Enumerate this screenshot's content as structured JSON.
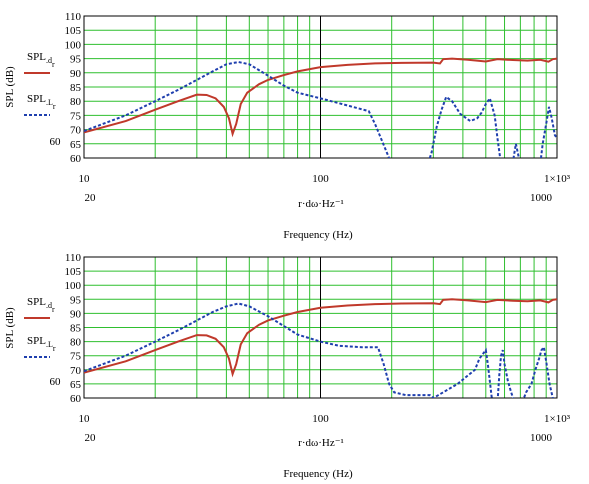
{
  "chart_data": [
    {
      "type": "line",
      "xscale": "log",
      "xlim": [
        10,
        1000
      ],
      "ylim": [
        60,
        110
      ],
      "yticks": [
        "110",
        "105",
        "100",
        "95",
        "90",
        "85",
        "80",
        "75",
        "70",
        "65",
        "60"
      ],
      "ytick_extra": [
        "60"
      ],
      "ylabel": "SPL (dB)",
      "xticks_top": [
        "10",
        "100",
        "1×10³"
      ],
      "xticks_bottom": [
        "20",
        "1000"
      ],
      "xlabel_expr": "r·dω·Hz⁻¹",
      "xlabel": "Frequency (Hz)",
      "series": [
        {
          "name": "SPL_d_r",
          "label_main": "SPL",
          "label_sub": "d",
          "label_subsub": "r",
          "color": "#c0392b",
          "style": "solid",
          "points": [
            [
              10,
              69
            ],
            [
              15,
              73
            ],
            [
              20,
              77
            ],
            [
              25,
              80
            ],
            [
              30,
              82.3
            ],
            [
              33,
              82.2
            ],
            [
              36,
              81
            ],
            [
              39,
              78
            ],
            [
              41,
              74
            ],
            [
              42.5,
              68.5
            ],
            [
              44,
              72
            ],
            [
              46,
              79
            ],
            [
              49,
              83
            ],
            [
              55,
              86
            ],
            [
              60,
              87.5
            ],
            [
              70,
              89.2
            ],
            [
              80,
              90.5
            ],
            [
              100,
              92
            ],
            [
              130,
              92.8
            ],
            [
              170,
              93.3
            ],
            [
              220,
              93.5
            ],
            [
              300,
              93.6
            ],
            [
              320,
              93.3
            ],
            [
              330,
              94.8
            ],
            [
              360,
              95
            ],
            [
              420,
              94.6
            ],
            [
              500,
              94
            ],
            [
              560,
              94.8
            ],
            [
              650,
              94.5
            ],
            [
              750,
              94.3
            ],
            [
              850,
              94.6
            ],
            [
              920,
              93.9
            ],
            [
              960,
              94.8
            ],
            [
              1000,
              95
            ]
          ]
        },
        {
          "name": "SPL_L_r",
          "label_main": "SPL",
          "label_sub": "L",
          "label_subsub": "r",
          "color": "#1f3fae",
          "style": "dotted",
          "points": [
            [
              10,
              69.5
            ],
            [
              15,
              75
            ],
            [
              20,
              80
            ],
            [
              25,
              84
            ],
            [
              30,
              87.5
            ],
            [
              35,
              90.5
            ],
            [
              40,
              93
            ],
            [
              45,
              93.8
            ],
            [
              50,
              93
            ],
            [
              60,
              89
            ],
            [
              70,
              85.5
            ],
            [
              80,
              83
            ],
            [
              100,
              81
            ],
            [
              130,
              78.5
            ],
            [
              160,
              76.5
            ],
            [
              170,
              72
            ],
            [
              180,
              67
            ],
            [
              195,
              60
            ],
            [
              200,
              58
            ],
            [
              285,
              58
            ],
            [
              295,
              62
            ],
            [
              310,
              71
            ],
            [
              325,
              77
            ],
            [
              340,
              81.5
            ],
            [
              360,
              80
            ],
            [
              390,
              75.5
            ],
            [
              430,
              73
            ],
            [
              460,
              74
            ],
            [
              480,
              76
            ],
            [
              500,
              79
            ],
            [
              520,
              81
            ],
            [
              545,
              75
            ],
            [
              560,
              67
            ],
            [
              575,
              60
            ],
            [
              590,
              58
            ],
            [
              640,
              58
            ],
            [
              655,
              60
            ],
            [
              670,
              65
            ],
            [
              690,
              60
            ],
            [
              710,
              58
            ],
            [
              850,
              58
            ],
            [
              870,
              65
            ],
            [
              900,
              72
            ],
            [
              925,
              78
            ],
            [
              950,
              74
            ],
            [
              980,
              68
            ],
            [
              1000,
              67
            ]
          ]
        }
      ]
    },
    {
      "type": "line",
      "xscale": "log",
      "xlim": [
        10,
        1000
      ],
      "ylim": [
        60,
        110
      ],
      "yticks": [
        "110",
        "105",
        "100",
        "95",
        "90",
        "85",
        "80",
        "75",
        "70",
        "65",
        "60"
      ],
      "ytick_extra": [
        "60"
      ],
      "ylabel": "SPL (dB)",
      "xticks_top": [
        "10",
        "100",
        "1×10³"
      ],
      "xticks_bottom": [
        "20",
        "1000"
      ],
      "xlabel_expr": "r·dω·Hz⁻¹",
      "xlabel": "Frequency (Hz)",
      "series": [
        {
          "name": "SPL_d_r",
          "label_main": "SPL",
          "label_sub": "d",
          "label_subsub": "r",
          "color": "#c0392b",
          "style": "solid",
          "points": [
            [
              10,
              69
            ],
            [
              15,
              73
            ],
            [
              20,
              77
            ],
            [
              25,
              80
            ],
            [
              30,
              82.3
            ],
            [
              33,
              82.2
            ],
            [
              36,
              81
            ],
            [
              39,
              78
            ],
            [
              41,
              74
            ],
            [
              42.5,
              68.5
            ],
            [
              44,
              72
            ],
            [
              46,
              79
            ],
            [
              49,
              83
            ],
            [
              55,
              86
            ],
            [
              60,
              87.5
            ],
            [
              70,
              89.2
            ],
            [
              80,
              90.5
            ],
            [
              100,
              92
            ],
            [
              130,
              92.8
            ],
            [
              170,
              93.3
            ],
            [
              220,
              93.5
            ],
            [
              300,
              93.6
            ],
            [
              320,
              93.3
            ],
            [
              330,
              94.8
            ],
            [
              360,
              95
            ],
            [
              420,
              94.6
            ],
            [
              500,
              94
            ],
            [
              560,
              94.8
            ],
            [
              650,
              94.5
            ],
            [
              750,
              94.3
            ],
            [
              850,
              94.6
            ],
            [
              920,
              93.9
            ],
            [
              960,
              94.8
            ],
            [
              1000,
              95
            ]
          ]
        },
        {
          "name": "SPL_L_r",
          "label_main": "SPL",
          "label_sub": "L",
          "label_subsub": "r",
          "color": "#1f3fae",
          "style": "dotted",
          "points": [
            [
              10,
              69.5
            ],
            [
              15,
              75
            ],
            [
              20,
              80
            ],
            [
              25,
              84
            ],
            [
              30,
              87.5
            ],
            [
              35,
              90.5
            ],
            [
              40,
              92.5
            ],
            [
              45,
              93.5
            ],
            [
              50,
              92.5
            ],
            [
              60,
              89
            ],
            [
              70,
              85.5
            ],
            [
              80,
              82.5
            ],
            [
              100,
              80
            ],
            [
              120,
              78.5
            ],
            [
              150,
              78
            ],
            [
              175,
              78
            ],
            [
              185,
              72
            ],
            [
              195,
              65
            ],
            [
              205,
              62
            ],
            [
              230,
              61
            ],
            [
              290,
              61
            ],
            [
              300,
              60
            ],
            [
              330,
              62
            ],
            [
              380,
              65
            ],
            [
              420,
              68
            ],
            [
              450,
              70
            ],
            [
              470,
              74
            ],
            [
              490,
              76
            ],
            [
              500,
              77
            ],
            [
              510,
              72
            ],
            [
              520,
              66
            ],
            [
              530,
              60
            ],
            [
              545,
              58
            ],
            [
              560,
              58
            ],
            [
              570,
              68
            ],
            [
              580,
              75
            ],
            [
              590,
              77
            ],
            [
              600,
              72
            ],
            [
              620,
              66
            ],
            [
              640,
              62
            ],
            [
              665,
              58
            ],
            [
              710,
              58
            ],
            [
              740,
              62
            ],
            [
              780,
              65
            ],
            [
              810,
              70
            ],
            [
              840,
              74
            ],
            [
              860,
              77
            ],
            [
              880,
              78
            ],
            [
              900,
              73
            ],
            [
              930,
              65
            ],
            [
              960,
              60
            ],
            [
              980,
              58
            ],
            [
              1000,
              58
            ]
          ]
        }
      ]
    }
  ]
}
